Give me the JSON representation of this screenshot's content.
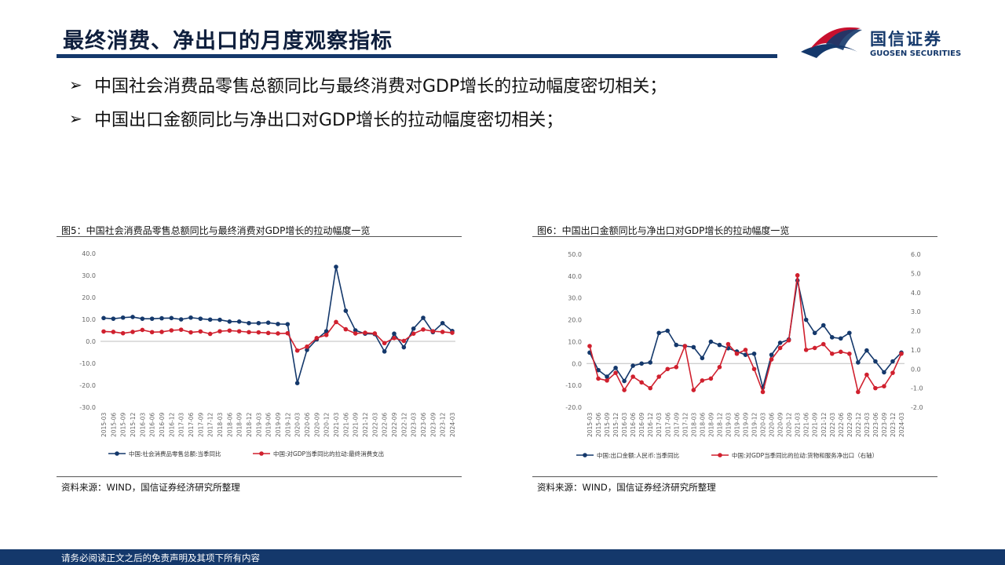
{
  "header": {
    "title": "最终消费、净出口的月度观察指标"
  },
  "logo": {
    "cn": "国信证券",
    "en": "GUOSEN SECURITIES",
    "colors": {
      "red": "#c8102e",
      "navy": "#14386b"
    }
  },
  "bullets": [
    {
      "icon": "arrow-right-icon",
      "text": "中国社会消费品零售总额同比与最终消费对GDP增长的拉动幅度密切相关；"
    },
    {
      "icon": "arrow-right-icon",
      "text": "中国出口金额同比与净出口对GDP增长的拉动幅度密切相关；"
    }
  ],
  "figures": [
    {
      "title": "图5：中国社会消费品零售总额同比与最终消费对GDP增长的拉动幅度一览",
      "source": "资料来源：WIND，国信证券经济研究所整理"
    },
    {
      "title": "图6：中国出口金额同比与净出口对GDP增长的拉动幅度一览",
      "source": "资料来源：WIND，国信证券经济研究所整理"
    }
  ],
  "footer": {
    "disclaimer": "请务必阅读正文之后的免责声明及其项下所有内容"
  },
  "chart_data": [
    {
      "type": "line",
      "categories": [
        "2015-03",
        "2015-06",
        "2015-09",
        "2015-12",
        "2016-03",
        "2016-06",
        "2016-09",
        "2016-12",
        "2017-03",
        "2017-06",
        "2017-09",
        "2017-12",
        "2018-03",
        "2018-06",
        "2018-09",
        "2018-12",
        "2019-03",
        "2019-06",
        "2019-09",
        "2019-12",
        "2020-03",
        "2020-06",
        "2020-09",
        "2020-12",
        "2021-03",
        "2021-06",
        "2021-09",
        "2021-12",
        "2022-03",
        "2022-06",
        "2022-09",
        "2022-12",
        "2023-03",
        "2023-06",
        "2023-09",
        "2023-12",
        "2024-03"
      ],
      "y_ticks": [
        "40.0",
        "30.0",
        "20.0",
        "10.0",
        "0.0",
        "-10.0",
        "-20.0",
        "-30.0"
      ],
      "ylim": [
        -30,
        40
      ],
      "series": [
        {
          "name": "中国:社会消费品零售总额:当季同比",
          "color": "#14386b",
          "values": [
            10.6,
            10.3,
            10.8,
            11.1,
            10.3,
            10.3,
            10.5,
            10.6,
            10.0,
            10.8,
            10.3,
            9.9,
            9.8,
            9.0,
            9.0,
            8.3,
            8.3,
            8.5,
            7.9,
            7.8,
            -19.0,
            -3.9,
            0.9,
            4.6,
            33.9,
            13.9,
            5.0,
            3.5,
            3.3,
            -4.6,
            3.5,
            -2.7,
            5.8,
            10.7,
            4.2,
            8.3,
            4.7
          ]
        },
        {
          "name": "中国:对GDP当季同比的拉动:最终消费支出",
          "color": "#d0202e",
          "values": [
            4.5,
            4.3,
            3.7,
            4.3,
            5.2,
            4.2,
            4.3,
            5.0,
            5.3,
            4.1,
            4.5,
            3.4,
            4.6,
            4.9,
            4.6,
            4.2,
            4.1,
            3.8,
            3.6,
            3.7,
            -4.2,
            -2.4,
            1.5,
            2.9,
            8.8,
            5.5,
            3.6,
            3.9,
            3.6,
            -0.8,
            1.5,
            0.2,
            3.5,
            5.4,
            4.6,
            4.3,
            3.9
          ]
        }
      ],
      "grid": false,
      "legend_position": "bottom"
    },
    {
      "type": "line",
      "categories": [
        "2015-03",
        "2015-06",
        "2015-09",
        "2015-12",
        "2016-03",
        "2016-06",
        "2016-09",
        "2016-12",
        "2017-03",
        "2017-06",
        "2017-09",
        "2017-12",
        "2018-03",
        "2018-06",
        "2018-09",
        "2018-12",
        "2019-03",
        "2019-06",
        "2019-09",
        "2019-12",
        "2020-03",
        "2020-06",
        "2020-09",
        "2020-12",
        "2021-03",
        "2021-06",
        "2021-09",
        "2021-12",
        "2022-03",
        "2022-06",
        "2022-09",
        "2022-12",
        "2023-03",
        "2023-06",
        "2023-09",
        "2023-12",
        "2024-03"
      ],
      "y_ticks_left": [
        "50.0",
        "40.0",
        "30.0",
        "20.0",
        "10.0",
        "0.0",
        "-10.0",
        "-20.0"
      ],
      "y_ticks_right": [
        "6.0",
        "5.0",
        "4.0",
        "3.0",
        "2.0",
        "1.0",
        "0.0",
        "-1.0",
        "-2.0"
      ],
      "ylim_left": [
        -20,
        50
      ],
      "ylim_right": [
        -2,
        6
      ],
      "series": [
        {
          "name": "中国:出口金额:人民币:当季同比",
          "color": "#14386b",
          "axis": "left",
          "values": [
            5.0,
            -3.0,
            -6.0,
            -2.0,
            -8.0,
            -1.0,
            0.0,
            0.5,
            14.0,
            15.0,
            8.5,
            8.0,
            7.5,
            2.5,
            10.0,
            8.5,
            7.0,
            5.5,
            4.0,
            4.5,
            -11.0,
            4.0,
            9.5,
            11.0,
            38.0,
            20.0,
            14.0,
            17.5,
            12.0,
            11.5,
            14.0,
            0.5,
            6.0,
            1.0,
            -4.0,
            1.0,
            5.0
          ]
        },
        {
          "name": "中国:对GDP当季同比的拉动:货物和服务净出口（右轴）",
          "color": "#d0202e",
          "axis": "right",
          "values": [
            1.2,
            -0.5,
            -0.6,
            -0.2,
            -1.1,
            -0.4,
            -0.7,
            -1.0,
            -0.4,
            0.0,
            0.1,
            1.2,
            -1.1,
            -0.6,
            -0.5,
            0.1,
            1.3,
            0.8,
            1.0,
            0.0,
            -1.2,
            0.5,
            1.1,
            1.5,
            4.9,
            1.0,
            1.1,
            1.3,
            0.8,
            0.9,
            0.8,
            -1.2,
            -0.3,
            -1.0,
            -0.9,
            -0.2,
            0.8
          ]
        }
      ],
      "grid": false,
      "legend_position": "bottom"
    }
  ]
}
